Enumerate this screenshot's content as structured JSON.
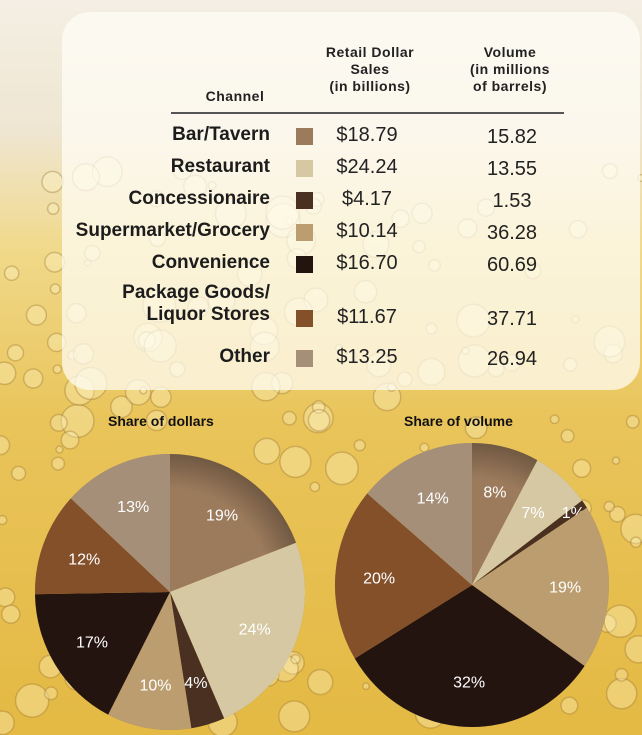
{
  "table": {
    "headers": {
      "channel": "Channel",
      "dollars": [
        "Retail Dollar",
        "Sales",
        "(in billions)"
      ],
      "volume": [
        "Volume",
        "(in millions",
        "of barrels)"
      ]
    },
    "rows": [
      {
        "channel": [
          "Bar/Tavern"
        ],
        "dollars": "$18.79",
        "volume": "15.82",
        "color": "#9c7b5c"
      },
      {
        "channel": [
          "Restaurant"
        ],
        "dollars": "$24.24",
        "volume": "13.55",
        "color": "#d5c8a2"
      },
      {
        "channel": [
          "Concessionaire"
        ],
        "dollars": "$4.17",
        "volume": "1.53",
        "color": "#4a3020"
      },
      {
        "channel": [
          "Supermarket/Grocery"
        ],
        "dollars": "$10.14",
        "volume": "36.28",
        "color": "#bc9d70"
      },
      {
        "channel": [
          "Convenience"
        ],
        "dollars": "$16.70",
        "volume": "60.69",
        "color": "#241410"
      },
      {
        "channel": [
          "Package Goods/",
          "Liquor Stores"
        ],
        "dollars": "$11.67",
        "volume": "37.71",
        "color": "#84502a"
      },
      {
        "channel": [
          "Other"
        ],
        "dollars": "$13.25",
        "volume": "26.94",
        "color": "#a68f79"
      }
    ]
  },
  "chart_data": [
    {
      "type": "pie",
      "title": "Share of dollars",
      "categories": [
        "Bar/Tavern",
        "Restaurant",
        "Concessionaire",
        "Supermarket/Grocery",
        "Convenience",
        "Package Goods/Liquor Stores",
        "Other"
      ],
      "values": [
        19,
        24,
        4,
        10,
        17,
        12,
        13
      ],
      "labels": [
        "19%",
        "24%",
        "4%",
        "10%",
        "17%",
        "12%",
        "13%"
      ],
      "start": "12 o'clock",
      "direction": "clockwise"
    },
    {
      "type": "pie",
      "title": "Share of volume",
      "categories": [
        "Bar/Tavern",
        "Restaurant",
        "Concessionaire",
        "Supermarket/Grocery",
        "Convenience",
        "Package Goods/Liquor Stores",
        "Other"
      ],
      "values": [
        8,
        7,
        1,
        19,
        32,
        20,
        14
      ],
      "labels": [
        "8%",
        "7%",
        "1%",
        "19%",
        "32%",
        "20%",
        "14%"
      ],
      "start": "12 o'clock",
      "direction": "clockwise"
    }
  ]
}
